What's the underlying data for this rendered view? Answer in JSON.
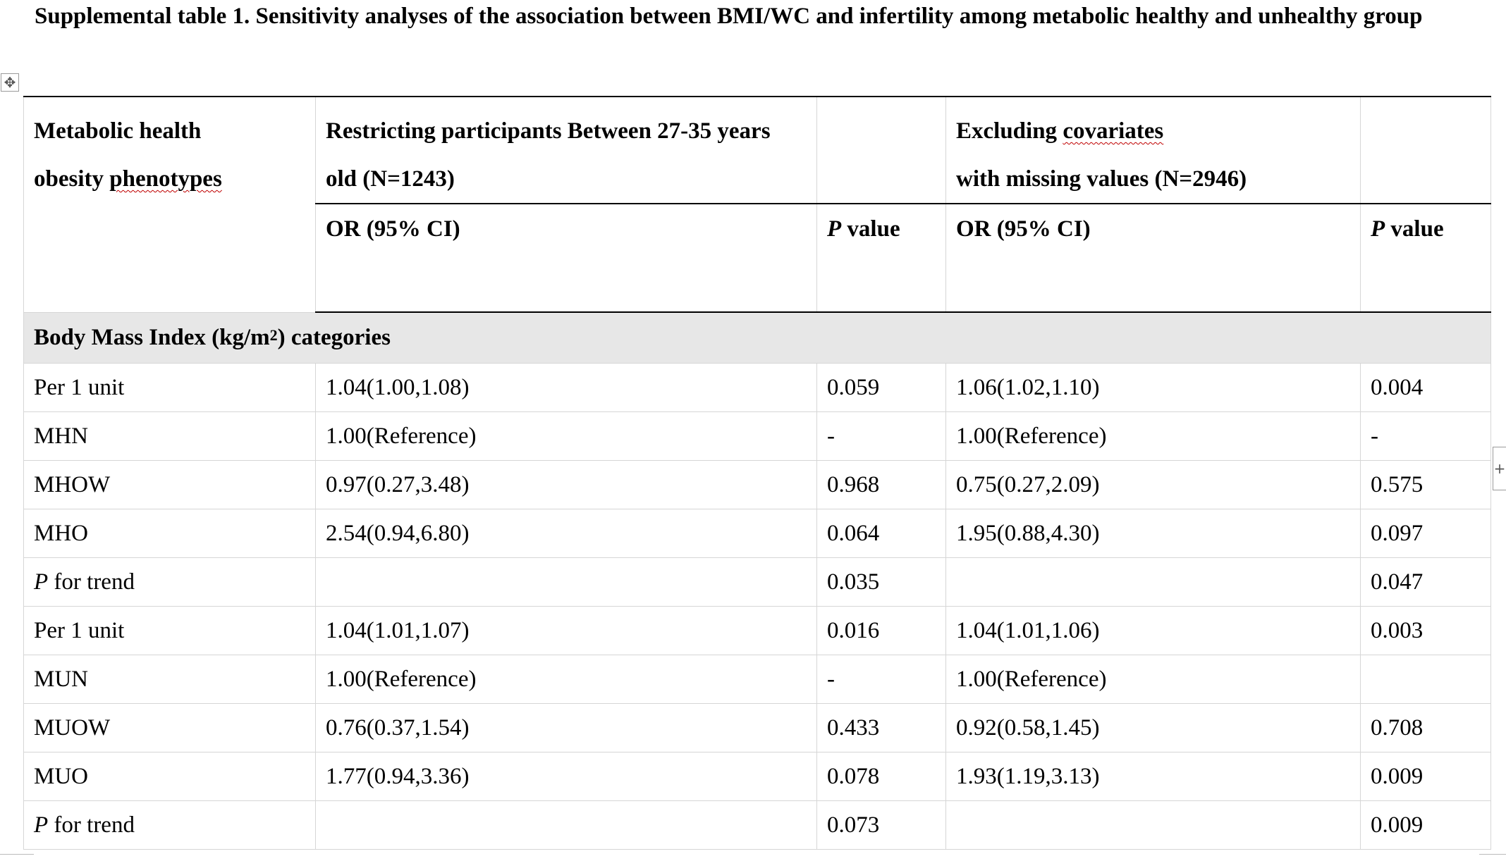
{
  "caption": {
    "text": "Supplemental table 1. Sensitivity analyses of the association between BMI/WC and infertility among metabolic healthy and unhealthy group"
  },
  "icons": {
    "move": "move-icon",
    "add": "plus-icon"
  },
  "header": {
    "stub_line1": "Metabolic health",
    "stub_line2_pre": "obesity ",
    "stub_line2_sq": "phenotypes",
    "group1_line1": "Restricting participants Between 27-35 years",
    "group1_line2": "old (N=1243)",
    "group2_line1_pre": "Excluding ",
    "group2_line1_sq": "covariates",
    "group2_line2": "with missing values (N=2946)",
    "or_label": "OR (95% CI)",
    "p_italic": "P",
    "p_rest": " value"
  },
  "section": {
    "pre": "Body Mass Index (kg/m",
    "sup": "2",
    "post": ") categories"
  },
  "rows": [
    {
      "label": "Per 1 unit",
      "or1": "1.04(1.00,1.08)",
      "p1": "0.059",
      "or2": "1.06(1.02,1.10)",
      "p2": "0.004"
    },
    {
      "label": "MHN",
      "or1": "1.00(Reference)",
      "p1": "-",
      "or2": "1.00(Reference)",
      "p2": "-"
    },
    {
      "label": "MHOW",
      "or1": "0.97(0.27,3.48)",
      "p1": "0.968",
      "or2": "0.75(0.27,2.09)",
      "p2": "0.575"
    },
    {
      "label": "MHO",
      "or1": "2.54(0.94,6.80)",
      "p1": "0.064",
      "or2": "1.95(0.88,4.30)",
      "p2": "0.097"
    },
    {
      "label_italic": "P",
      "label_rest": " for trend",
      "or1": "",
      "p1": "0.035",
      "or2": "",
      "p2": "0.047"
    },
    {
      "label": "Per 1 unit",
      "or1": "1.04(1.01,1.07)",
      "p1": "0.016",
      "or2": "1.04(1.01,1.06)",
      "p2": "0.003"
    },
    {
      "label": "MUN",
      "or1": "1.00(Reference)",
      "p1": "-",
      "or2": "1.00(Reference)",
      "p2": ""
    },
    {
      "label": "MUOW",
      "or1": "0.76(0.37,1.54)",
      "p1": "0.433",
      "or2": "0.92(0.58,1.45)",
      "p2": "0.708"
    },
    {
      "label": "MUO",
      "or1": "1.77(0.94,3.36)",
      "p1": "0.078",
      "or2": "1.93(1.19,3.13)",
      "p2": "0.009"
    },
    {
      "label_italic": "P",
      "label_rest": " for trend",
      "or1": "",
      "p1": "0.073",
      "or2": "",
      "p2": "0.009"
    }
  ]
}
